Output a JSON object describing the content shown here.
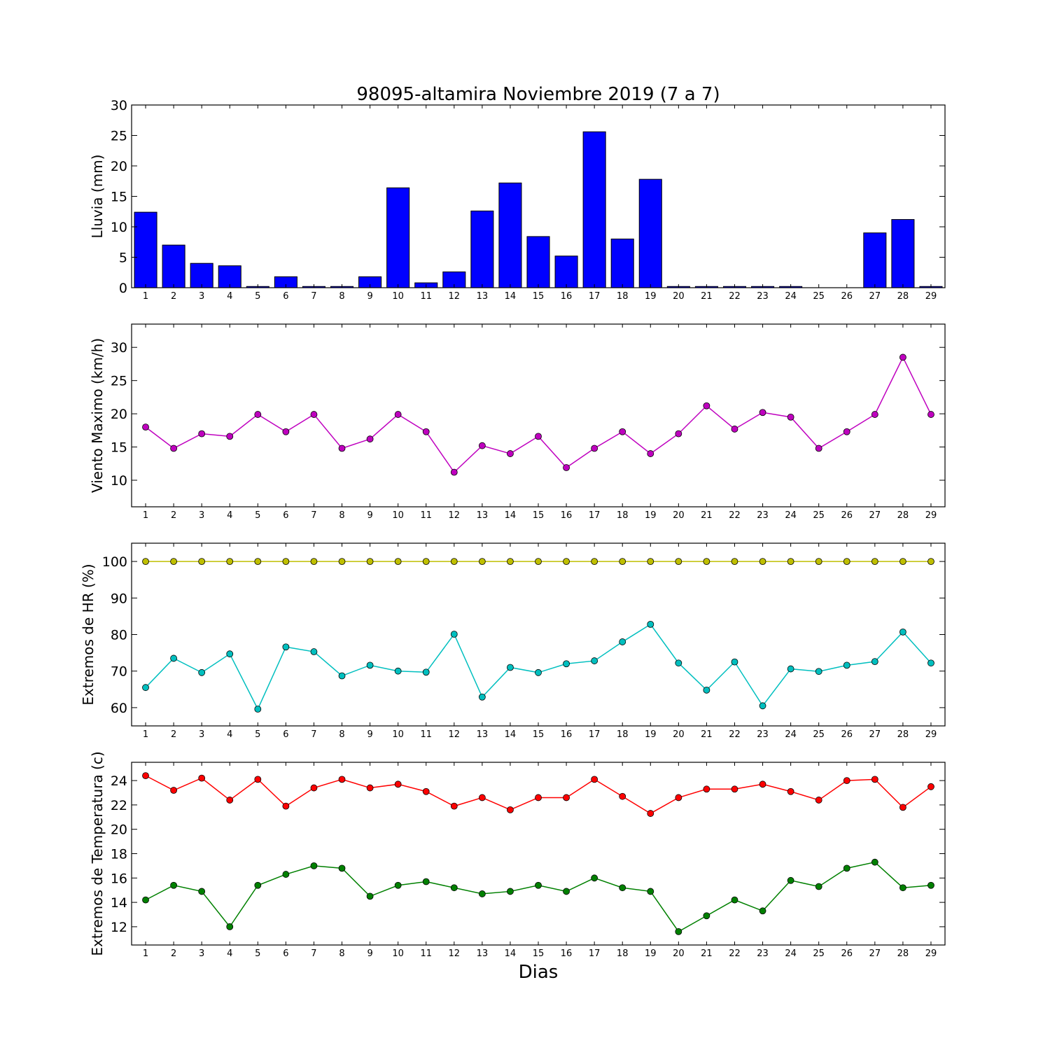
{
  "figure": {
    "title": "98095-altamira Noviembre 2019  (7 a 7)",
    "xlabel": "Dias"
  },
  "chart_data": [
    {
      "type": "bar",
      "ylabel": "Lluvia (mm)",
      "ylim": [
        0,
        30
      ],
      "yticks": [
        0,
        5,
        10,
        15,
        20,
        25,
        30
      ],
      "x": [
        1,
        2,
        3,
        4,
        5,
        6,
        7,
        8,
        9,
        10,
        11,
        12,
        13,
        14,
        15,
        16,
        17,
        18,
        19,
        20,
        21,
        22,
        23,
        24,
        25,
        26,
        27,
        28,
        29
      ],
      "xlim": [
        0.5,
        29.5
      ],
      "series": [
        {
          "color": "#0000ff",
          "values": [
            12.4,
            7.0,
            4.0,
            3.6,
            0.2,
            1.8,
            0.2,
            0.2,
            1.8,
            16.4,
            0.8,
            2.6,
            12.6,
            17.2,
            8.4,
            5.2,
            25.6,
            8.0,
            17.8,
            0.2,
            0.2,
            0.2,
            0.2,
            0.2,
            0.0,
            0.0,
            9.0,
            11.2,
            0.2
          ]
        }
      ]
    },
    {
      "type": "line",
      "ylabel": "Viento Maximo (km/h)",
      "ylim": [
        6,
        33.5
      ],
      "yticks": [
        10,
        15,
        20,
        25,
        30
      ],
      "x": [
        1,
        2,
        3,
        4,
        5,
        6,
        7,
        8,
        9,
        10,
        11,
        12,
        13,
        14,
        15,
        16,
        17,
        18,
        19,
        20,
        21,
        22,
        23,
        24,
        25,
        26,
        27,
        28,
        29
      ],
      "xlim": [
        0.5,
        29.5
      ],
      "series": [
        {
          "color": "#bf00bf",
          "values": [
            18.0,
            14.8,
            17.0,
            16.6,
            19.9,
            17.3,
            19.9,
            14.8,
            16.2,
            19.9,
            17.3,
            11.2,
            15.2,
            14.0,
            16.6,
            11.9,
            14.8,
            17.3,
            14.0,
            17.0,
            21.2,
            17.7,
            20.2,
            19.5,
            14.8,
            17.3,
            19.9,
            28.5,
            19.9
          ]
        }
      ]
    },
    {
      "type": "line",
      "ylabel": "Extremos de HR (%)",
      "ylim": [
        55,
        105
      ],
      "yticks": [
        60,
        70,
        80,
        90,
        100
      ],
      "x": [
        1,
        2,
        3,
        4,
        5,
        6,
        7,
        8,
        9,
        10,
        11,
        12,
        13,
        14,
        15,
        16,
        17,
        18,
        19,
        20,
        21,
        22,
        23,
        24,
        25,
        26,
        27,
        28,
        29
      ],
      "xlim": [
        0.5,
        29.5
      ],
      "series": [
        {
          "color": "#bfbf00",
          "values": [
            100,
            100,
            100,
            100,
            100,
            100,
            100,
            100,
            100,
            100,
            100,
            100,
            100,
            100,
            100,
            100,
            100,
            100,
            100,
            100,
            100,
            100,
            100,
            100,
            100,
            100,
            100,
            100,
            100
          ]
        },
        {
          "color": "#00bfbf",
          "values": [
            65.5,
            73.5,
            69.6,
            74.7,
            59.6,
            76.6,
            75.3,
            68.7,
            71.6,
            70.0,
            69.7,
            80.1,
            62.9,
            71.0,
            69.6,
            72.0,
            72.8,
            78.0,
            82.8,
            72.2,
            64.8,
            72.5,
            60.5,
            70.6,
            69.9,
            71.6,
            72.6,
            80.7,
            72.2
          ]
        }
      ]
    },
    {
      "type": "line",
      "ylabel": "Extremos de Temperatura (c)",
      "ylim": [
        10.5,
        25.5
      ],
      "yticks": [
        12,
        14,
        16,
        18,
        20,
        22,
        24
      ],
      "x": [
        1,
        2,
        3,
        4,
        5,
        6,
        7,
        8,
        9,
        10,
        11,
        12,
        13,
        14,
        15,
        16,
        17,
        18,
        19,
        20,
        21,
        22,
        23,
        24,
        25,
        26,
        27,
        28,
        29
      ],
      "xlim": [
        0.5,
        29.5
      ],
      "series": [
        {
          "color": "#ff0000",
          "values": [
            24.4,
            23.2,
            24.2,
            22.4,
            24.1,
            21.9,
            23.4,
            24.1,
            23.4,
            23.7,
            23.1,
            21.9,
            22.6,
            21.6,
            22.6,
            22.6,
            24.1,
            22.7,
            21.3,
            22.6,
            23.3,
            23.3,
            23.7,
            23.1,
            22.4,
            24.0,
            24.1,
            21.8,
            23.5
          ]
        },
        {
          "color": "#008000",
          "values": [
            14.2,
            15.4,
            14.9,
            12.0,
            15.4,
            16.3,
            17.0,
            16.8,
            14.5,
            15.4,
            15.7,
            15.2,
            14.7,
            14.9,
            15.4,
            14.9,
            16.0,
            15.2,
            14.9,
            11.6,
            12.9,
            14.2,
            13.3,
            15.8,
            15.3,
            16.8,
            17.3,
            15.2,
            15.4
          ]
        }
      ]
    }
  ]
}
